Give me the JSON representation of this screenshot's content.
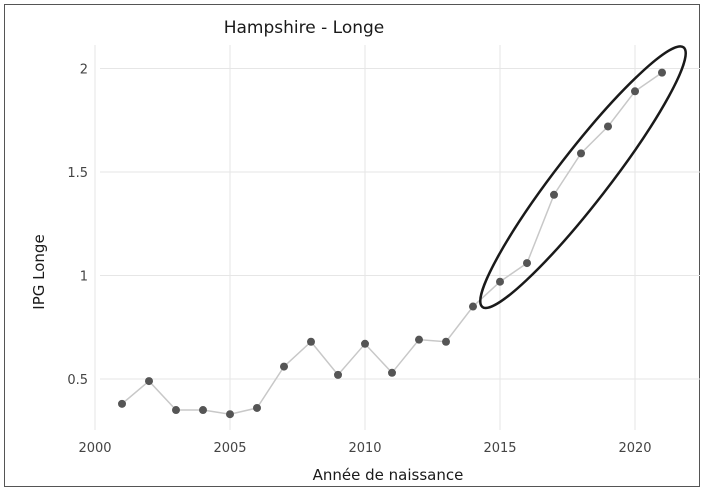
{
  "chart_data": {
    "type": "line",
    "title": "Hampshire - Longe",
    "xlabel": "Année de naissance",
    "ylabel": "IPG Longe",
    "xlim": [
      2000,
      2022
    ],
    "ylim": [
      0.25,
      2.1
    ],
    "xticks": [
      2000,
      2005,
      2010,
      2015,
      2020
    ],
    "yticks": [
      0.5,
      1,
      1.5,
      2
    ],
    "ytick_labels": [
      "0.5",
      "1",
      "1.5",
      "2"
    ],
    "grid": true,
    "series": [
      {
        "x": [
          2001,
          2002,
          2003,
          2004,
          2005,
          2006,
          2007,
          2008,
          2009,
          2010,
          2011,
          2012,
          2013,
          2014,
          2015,
          2016,
          2017,
          2018,
          2019,
          2020,
          2021
        ],
        "values": [
          0.38,
          0.49,
          0.35,
          0.35,
          0.33,
          0.36,
          0.56,
          0.68,
          0.52,
          0.67,
          0.53,
          0.69,
          0.68,
          0.85,
          0.97,
          1.06,
          1.39,
          1.59,
          1.72,
          1.89,
          1.98
        ],
        "line_color": "#c8c8c8",
        "marker_color": "#555555"
      }
    ],
    "annotation": {
      "type": "ellipse",
      "covers_x": [
        2015,
        2021
      ]
    }
  }
}
